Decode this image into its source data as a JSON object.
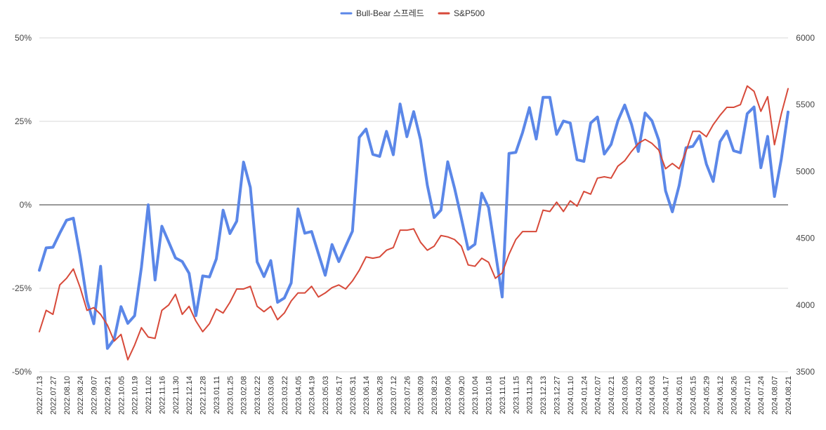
{
  "chart_data": {
    "type": "line",
    "title": "",
    "x": [
      "2022.07.13",
      "2022.07.20",
      "2022.07.27",
      "2022.08.03",
      "2022.08.10",
      "2022.08.17",
      "2022.08.24",
      "2022.08.31",
      "2022.09.07",
      "2022.09.14",
      "2022.09.21",
      "2022.09.28",
      "2022.10.05",
      "2022.10.12",
      "2022.10.19",
      "2022.10.26",
      "2022.11.02",
      "2022.11.09",
      "2022.11.16",
      "2022.11.23",
      "2022.11.30",
      "2022.12.07",
      "2022.12.14",
      "2022.12.21",
      "2022.12.28",
      "2023.01.04",
      "2023.01.11",
      "2023.01.18",
      "2023.01.25",
      "2023.02.01",
      "2023.02.08",
      "2023.02.15",
      "2023.02.22",
      "2023.03.01",
      "2023.03.08",
      "2023.03.15",
      "2023.03.22",
      "2023.03.29",
      "2023.04.05",
      "2023.04.12",
      "2023.04.19",
      "2023.04.26",
      "2023.05.03",
      "2023.05.10",
      "2023.05.17",
      "2023.05.24",
      "2023.05.31",
      "2023.06.07",
      "2023.06.14",
      "2023.06.21",
      "2023.06.28",
      "2023.07.05",
      "2023.07.12",
      "2023.07.19",
      "2023.07.26",
      "2023.08.02",
      "2023.08.09",
      "2023.08.16",
      "2023.08.23",
      "2023.08.30",
      "2023.09.06",
      "2023.09.13",
      "2023.09.20",
      "2023.09.27",
      "2023.10.04",
      "2023.10.11",
      "2023.10.18",
      "2023.10.25",
      "2023.11.01",
      "2023.11.08",
      "2023.11.15",
      "2023.11.22",
      "2023.11.29",
      "2023.12.06",
      "2023.12.13",
      "2023.12.20",
      "2023.12.27",
      "2024.01.03",
      "2024.01.10",
      "2024.01.17",
      "2024.01.24",
      "2024.01.31",
      "2024.02.07",
      "2024.02.14",
      "2024.02.21",
      "2024.02.28",
      "2024.03.06",
      "2024.03.13",
      "2024.03.20",
      "2024.03.27",
      "2024.04.03",
      "2024.04.10",
      "2024.04.17",
      "2024.04.24",
      "2024.05.01",
      "2024.05.08",
      "2024.05.15",
      "2024.05.22",
      "2024.05.29",
      "2024.06.05",
      "2024.06.12",
      "2024.06.19",
      "2024.06.26",
      "2024.07.03",
      "2024.07.10",
      "2024.07.17",
      "2024.07.24",
      "2024.07.31",
      "2024.08.07",
      "2024.08.14",
      "2024.08.21"
    ],
    "tick_labels": [
      "2022.07.13",
      "2022.07.27",
      "2022.08.10",
      "2022.08.24",
      "2022.09.07",
      "2022.09.21",
      "2022.10.05",
      "2022.10.19",
      "2022.11.02",
      "2022.11.16",
      "2022.11.30",
      "2022.12.14",
      "2022.12.28",
      "2023.01.11",
      "2023.01.25",
      "2023.02.08",
      "2023.02.22",
      "2023.03.08",
      "2023.03.22",
      "2023.04.05",
      "2023.04.19",
      "2023.05.03",
      "2023.05.17",
      "2023.05.31",
      "2023.06.14",
      "2023.06.28",
      "2023.07.12",
      "2023.07.26",
      "2023.08.09",
      "2023.08.23",
      "2023.09.06",
      "2023.09.20",
      "2023.10.04",
      "2023.10.18",
      "2023.11.01",
      "2023.11.15",
      "2023.11.29",
      "2023.12.13",
      "2023.12.27",
      "2024.01.10",
      "2024.01.24",
      "2024.02.07",
      "2024.02.21",
      "2024.03.06",
      "2024.03.20",
      "2024.04.03",
      "2024.04.17",
      "2024.05.01",
      "2024.05.15",
      "2024.05.29",
      "2024.06.12",
      "2024.06.26",
      "2024.07.10",
      "2024.07.24",
      "2024.08.07",
      "2024.08.21"
    ],
    "series": [
      {
        "name": "Bull-Bear 스프레드",
        "axis": "left",
        "color": "#5b87e8",
        "values": [
          -19.6,
          -12.9,
          -12.7,
          -8.5,
          -4.6,
          -4.0,
          -15.4,
          -28.7,
          -35.6,
          -18.4,
          -43.0,
          -40.2,
          -30.5,
          -35.5,
          -33.2,
          -18.7,
          0,
          -22.5,
          -6.4,
          -11.1,
          -15.9,
          -17.0,
          -20.5,
          -33.2,
          -21.3,
          -21.6,
          -16.2,
          -1.6,
          -8.6,
          -4.9,
          12.8,
          5.2,
          -17.1,
          -21.5,
          -16.7,
          -29.2,
          -27.9,
          -23.4,
          -1.2,
          -8.5,
          -8.0,
          -14.6,
          -21.1,
          -11.9,
          -17.0,
          -12.4,
          -7.9,
          20.2,
          22.7,
          15.1,
          14.5,
          22.0,
          15.0,
          30.2,
          20.4,
          27.9,
          19.5,
          5.9,
          -3.8,
          -1.6,
          12.9,
          5.0,
          -4.0,
          -13.3,
          -11.8,
          3.5,
          -0.8,
          -14.1,
          -27.6,
          15.4,
          15.7,
          21.7,
          29.1,
          19.7,
          32.2,
          32.2,
          21.1,
          25.1,
          24.5,
          13.5,
          13.0,
          24.5,
          26.3,
          15.2,
          18.1,
          25.2,
          29.9,
          24.1,
          16.0,
          27.5,
          25.2,
          19.4,
          4.2,
          -2.1,
          5.8,
          17.1,
          17.5,
          20.7,
          12.2,
          7.0,
          18.9,
          22.1,
          16.2,
          15.6,
          27.3,
          29.3,
          11.1,
          20.5,
          2.5,
          13.6,
          27.8
        ]
      },
      {
        "name": "S&P500",
        "axis": "right",
        "color": "#d74a3a",
        "values": [
          3800,
          3960,
          3930,
          4150,
          4200,
          4270,
          4130,
          3960,
          3980,
          3930,
          3850,
          3730,
          3780,
          3590,
          3700,
          3830,
          3760,
          3750,
          3960,
          4000,
          4080,
          3930,
          3990,
          3880,
          3800,
          3860,
          3970,
          3940,
          4020,
          4120,
          4120,
          4140,
          3990,
          3950,
          3990,
          3890,
          3940,
          4030,
          4090,
          4090,
          4140,
          4060,
          4090,
          4130,
          4150,
          4120,
          4180,
          4260,
          4360,
          4350,
          4360,
          4410,
          4430,
          4560,
          4560,
          4570,
          4470,
          4410,
          4440,
          4520,
          4510,
          4490,
          4440,
          4300,
          4290,
          4350,
          4320,
          4200,
          4240,
          4380,
          4490,
          4550,
          4550,
          4550,
          4710,
          4700,
          4770,
          4700,
          4780,
          4740,
          4850,
          4830,
          4950,
          4960,
          4950,
          5040,
          5080,
          5150,
          5210,
          5240,
          5210,
          5160,
          5020,
          5060,
          5020,
          5150,
          5300,
          5300,
          5260,
          5350,
          5420,
          5480,
          5480,
          5500,
          5640,
          5600,
          5450,
          5560,
          5200,
          5430,
          5620
        ]
      }
    ],
    "y_left": {
      "ticks": [
        -50,
        -25,
        0,
        25,
        50
      ],
      "tick_labels": [
        "-50%",
        "-25%",
        "0%",
        "25%",
        "50%"
      ],
      "range": [
        -50,
        50
      ]
    },
    "y_right": {
      "ticks": [
        3500,
        4000,
        4500,
        5000,
        5500,
        6000
      ],
      "tick_labels": [
        "3500",
        "4000",
        "4500",
        "5000",
        "5500",
        "6000"
      ],
      "range": [
        3500,
        6000
      ]
    },
    "grid": true,
    "legend_position": "top-center"
  }
}
